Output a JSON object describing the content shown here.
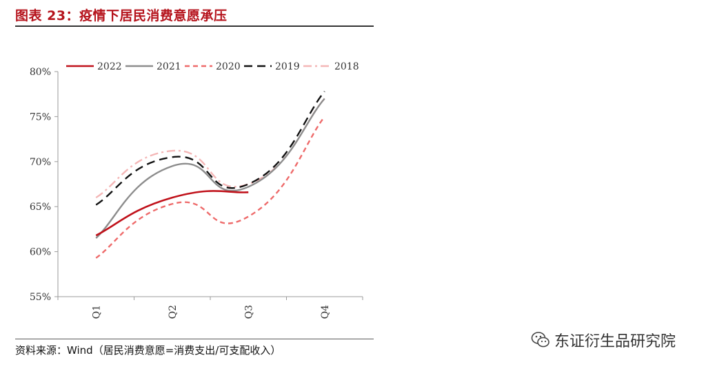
{
  "header": {
    "title": "图表 23：疫情下居民消费意愿承压"
  },
  "footer": {
    "source": "资料来源：Wind（居民消费意愿=消费支出/可支配收入）"
  },
  "watermark": {
    "text": "东证衍生品研究院",
    "icon": "wechat-icon"
  },
  "chart_data": {
    "type": "line",
    "categories": [
      "Q1",
      "Q2",
      "Q3",
      "Q4"
    ],
    "ylim": [
      55,
      80
    ],
    "yticks": [
      55,
      60,
      65,
      70,
      75,
      80
    ],
    "ytick_labels": [
      "55%",
      "60%",
      "65%",
      "70%",
      "75%",
      "80%"
    ],
    "legend_position": "top",
    "series": [
      {
        "name": "2022",
        "values": [
          61.8,
          66.0,
          66.6,
          null
        ],
        "color": "#c0111a",
        "dash": "solid"
      },
      {
        "name": "2021",
        "values": [
          61.5,
          69.5,
          67.2,
          77.0
        ],
        "color": "#8c8c8c",
        "dash": "solid"
      },
      {
        "name": "2020",
        "values": [
          59.3,
          65.3,
          63.9,
          75.0
        ],
        "color": "#ee6a6a",
        "dash": "short-dash"
      },
      {
        "name": "2019",
        "values": [
          65.2,
          70.5,
          67.5,
          77.8
        ],
        "color": "#111111",
        "dash": "long-dash"
      },
      {
        "name": "2018",
        "values": [
          66.0,
          71.2,
          67.5,
          77.0
        ],
        "color": "#f4b6b6",
        "dash": "dash-dot"
      }
    ]
  }
}
